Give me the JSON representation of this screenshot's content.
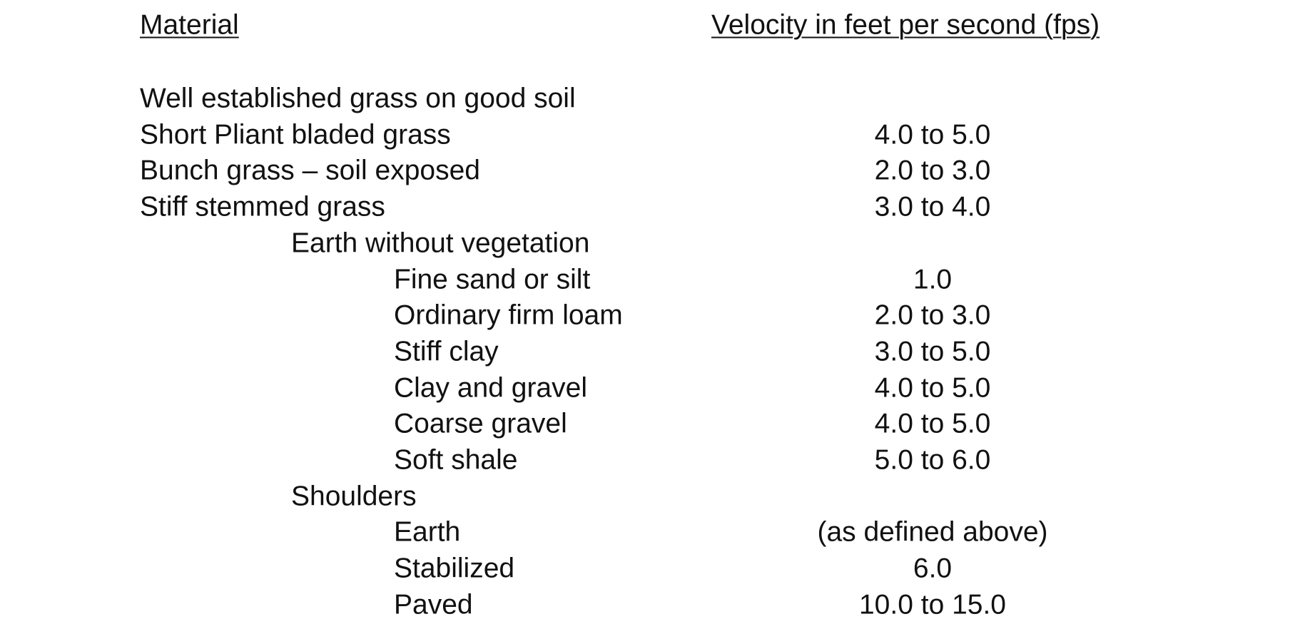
{
  "header": {
    "material": "Material",
    "velocity": "Velocity in feet per second (fps)"
  },
  "rows": [
    {
      "material": "Well established grass on good soil"
    },
    {
      "material": "Short Pliant bladed grass",
      "velocity": "4.0 to 5.0"
    },
    {
      "material": "Bunch grass – soil exposed",
      "velocity": "2.0 to 3.0"
    },
    {
      "material": "Stiff stemmed grass",
      "velocity": "3.0 to 4.0"
    }
  ],
  "groups": [
    {
      "title": "Earth without vegetation",
      "rows": [
        {
          "material": "Fine sand or silt",
          "velocity": "1.0"
        },
        {
          "material": "Ordinary firm loam",
          "velocity": "2.0 to 3.0"
        },
        {
          "material": "Stiff clay",
          "velocity": "3.0 to 5.0"
        },
        {
          "material": "Clay and gravel",
          "velocity": "4.0 to 5.0"
        },
        {
          "material": "Coarse gravel",
          "velocity": "4.0 to 5.0"
        },
        {
          "material": "Soft shale",
          "velocity": "5.0 to 6.0"
        }
      ]
    },
    {
      "title": "Shoulders",
      "rows": [
        {
          "material": "Earth",
          "velocity": "(as defined above)"
        },
        {
          "material": "Stabilized",
          "velocity": "6.0"
        },
        {
          "material": "Paved",
          "velocity": "10.0 to 15.0"
        }
      ]
    }
  ]
}
